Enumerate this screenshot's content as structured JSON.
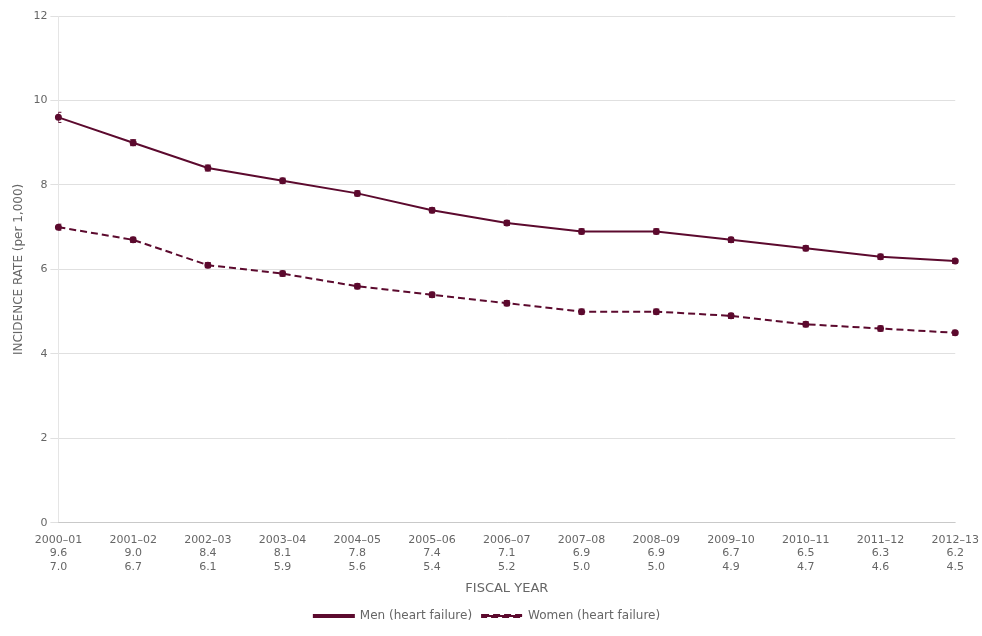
{
  "chart_data": {
    "type": "line",
    "categories": [
      "2000–01",
      "2001–02",
      "2002–03",
      "2003–04",
      "2004–05",
      "2005–06",
      "2006–07",
      "2007–08",
      "2008–09",
      "2009–10",
      "2010–11",
      "2011–12",
      "2012–13"
    ],
    "series": [
      {
        "name": "Men (heart failure)",
        "color": "#5C0A2E",
        "line_style": "solid",
        "values": [
          9.6,
          9.0,
          8.4,
          8.1,
          7.8,
          7.4,
          7.1,
          6.9,
          6.9,
          6.7,
          6.5,
          6.3,
          6.2
        ],
        "value_labels": [
          "9.6",
          "9.0",
          "8.4",
          "8.1",
          "7.8",
          "7.4",
          "7.1",
          "6.9",
          "6.9",
          "6.7",
          "6.5",
          "6.3",
          "6.2"
        ],
        "errors": [
          0.12,
          0.07,
          0.07,
          0.06,
          0.06,
          0.06,
          0.06,
          0.06,
          0.06,
          0.06,
          0.06,
          0.06,
          0.06
        ]
      },
      {
        "name": "Women (heart failure)",
        "color": "#5C0A2E",
        "line_style": "dashed",
        "values": [
          7.0,
          6.7,
          6.1,
          5.9,
          5.6,
          5.4,
          5.2,
          5.0,
          5.0,
          4.9,
          4.7,
          4.6,
          4.5
        ],
        "value_labels": [
          "7.0",
          "6.7",
          "6.1",
          "5.9",
          "5.6",
          "5.4",
          "5.2",
          "5.0",
          "5.0",
          "4.9",
          "4.7",
          "4.6",
          "4.5"
        ],
        "errors": [
          0.07,
          0.06,
          0.06,
          0.06,
          0.06,
          0.06,
          0.06,
          0.06,
          0.06,
          0.06,
          0.06,
          0.06,
          0.06
        ]
      }
    ],
    "ylabel": "INCIDENCE RATE (per 1,000)",
    "xlabel": "FISCAL YEAR",
    "ylim": [
      0,
      12
    ],
    "yticks": [
      0,
      2,
      4,
      6,
      8,
      10,
      12
    ],
    "grid": true,
    "data_labels": true,
    "legend": "bottom"
  }
}
